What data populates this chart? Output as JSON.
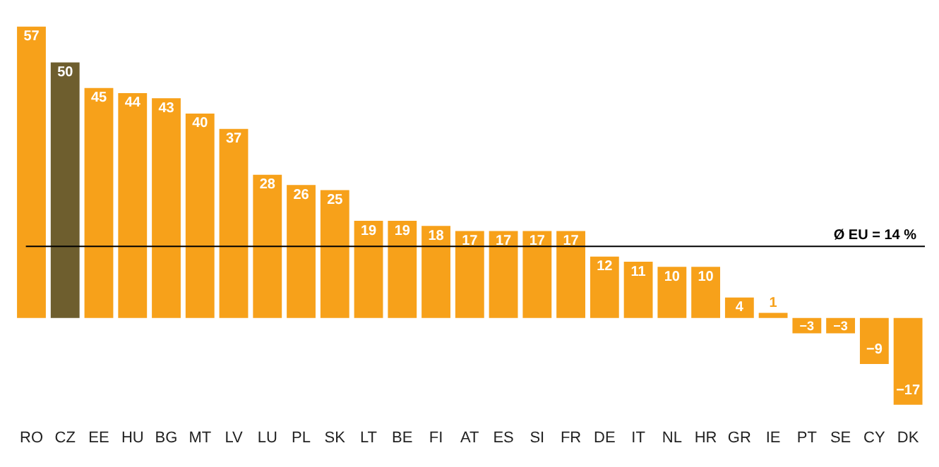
{
  "chart_data": {
    "type": "bar",
    "categories": [
      "RO",
      "CZ",
      "EE",
      "HU",
      "BG",
      "MT",
      "LV",
      "LU",
      "PL",
      "SK",
      "LT",
      "BE",
      "FI",
      "AT",
      "ES",
      "SI",
      "FR",
      "DE",
      "IT",
      "NL",
      "HR",
      "GR",
      "IE",
      "PT",
      "SE",
      "CY",
      "DK"
    ],
    "values": [
      57,
      50,
      45,
      44,
      43,
      40,
      37,
      28,
      26,
      25,
      19,
      19,
      18,
      17,
      17,
      17,
      17,
      12,
      11,
      10,
      10,
      4,
      1,
      -3,
      -3,
      -9,
      -17
    ],
    "colors": [
      "#f7a11a",
      "#6e5e2e",
      "#f7a11a",
      "#f7a11a",
      "#f7a11a",
      "#f7a11a",
      "#f7a11a",
      "#f7a11a",
      "#f7a11a",
      "#f7a11a",
      "#f7a11a",
      "#f7a11a",
      "#f7a11a",
      "#f7a11a",
      "#f7a11a",
      "#f7a11a",
      "#f7a11a",
      "#f7a11a",
      "#f7a11a",
      "#f7a11a",
      "#f7a11a",
      "#f7a11a",
      "#f7a11a",
      "#f7a11a",
      "#f7a11a",
      "#f7a11a",
      "#f7a11a"
    ],
    "data_labels": true,
    "grid": false,
    "legend": false,
    "tick_labels": "x",
    "ref_lines": [
      {
        "axis": "y",
        "value": 14,
        "label": "Ø EU = 14 %",
        "color": "#000000"
      }
    ]
  }
}
